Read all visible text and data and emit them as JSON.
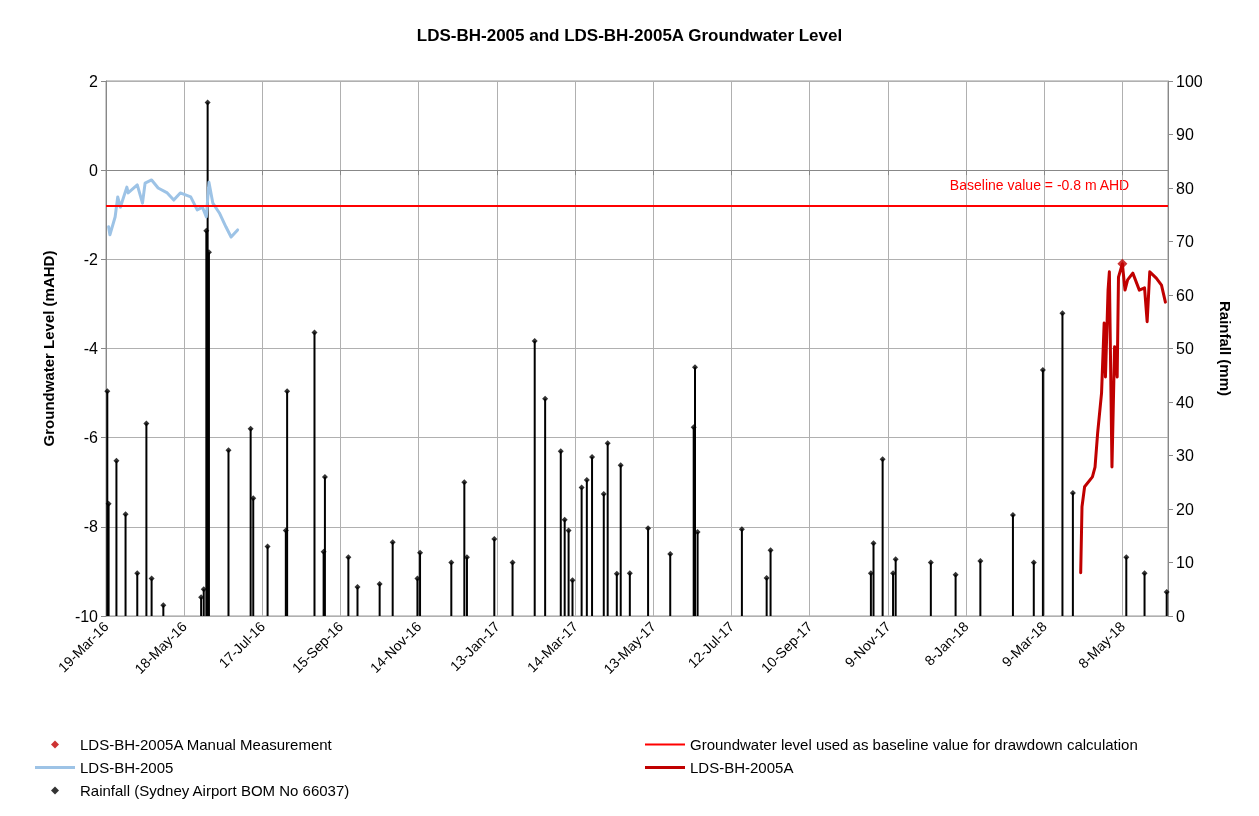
{
  "chart_data": {
    "type": "line",
    "title": "LDS-BH-2005 and LDS-BH-2005A Groundwater Level",
    "ylabel": "Groundwater Level (mAHD)",
    "y2label": "Rainfall (mm)",
    "xlim": [
      "2016-03-19",
      "2018-06-12"
    ],
    "xticks": [
      {
        "value": "2016-03-19",
        "label": "19-Mar-16"
      },
      {
        "value": "2016-05-18",
        "label": "18-May-16"
      },
      {
        "value": "2016-07-17",
        "label": "17-Jul-16"
      },
      {
        "value": "2016-09-15",
        "label": "15-Sep-16"
      },
      {
        "value": "2016-11-14",
        "label": "14-Nov-16"
      },
      {
        "value": "2017-01-13",
        "label": "13-Jan-17"
      },
      {
        "value": "2017-03-14",
        "label": "14-Mar-17"
      },
      {
        "value": "2017-05-13",
        "label": "13-May-17"
      },
      {
        "value": "2017-07-12",
        "label": "12-Jul-17"
      },
      {
        "value": "2017-09-10",
        "label": "10-Sep-17"
      },
      {
        "value": "2017-11-09",
        "label": "9-Nov-17"
      },
      {
        "value": "2018-01-08",
        "label": "8-Jan-18"
      },
      {
        "value": "2018-03-09",
        "label": "9-Mar-18"
      },
      {
        "value": "2018-05-08",
        "label": "8-May-18"
      }
    ],
    "ylim": [
      -10,
      2
    ],
    "yticks": [
      -10,
      -8,
      -6,
      -4,
      -2,
      0,
      2
    ],
    "y2lim": [
      0,
      100
    ],
    "y2ticks": [
      0,
      10,
      20,
      30,
      40,
      50,
      60,
      70,
      80,
      90,
      100
    ],
    "grid": true,
    "legend": "bottom",
    "ref_lines": [
      {
        "axis": "y",
        "value": -0.8,
        "label": "Groundwater level used as baseline value for drawdown calculation",
        "color": "#ff0000"
      }
    ],
    "annotations": [
      "Baseline value = -0.8 m AHD"
    ],
    "series": [
      {
        "name": "LDS-BH-2005A Manual Measurement",
        "type": "scatter",
        "marker": "diamond",
        "color": "#c00000",
        "x": [
          "2018-05-08"
        ],
        "values": [
          -2.1
        ]
      },
      {
        "name": "LDS-BH-2005",
        "marker": "none",
        "color": "#9dc3e6",
        "x": [
          "2016-03-21",
          "2016-03-22",
          "2016-03-26",
          "2016-03-28",
          "2016-03-30",
          "2016-04-04",
          "2016-04-05",
          "2016-04-12",
          "2016-04-16",
          "2016-04-18",
          "2016-04-23",
          "2016-04-28",
          "2016-05-05",
          "2016-05-10",
          "2016-05-15",
          "2016-05-23",
          "2016-05-28",
          "2016-06-01",
          "2016-06-04",
          "2016-06-06",
          "2016-06-09",
          "2016-06-14",
          "2016-06-19",
          "2016-06-23",
          "2016-06-28"
        ],
        "values": [
          -1.27,
          -1.45,
          -1.05,
          -0.6,
          -0.83,
          -0.38,
          -0.51,
          -0.33,
          -0.74,
          -0.29,
          -0.22,
          -0.4,
          -0.51,
          -0.67,
          -0.51,
          -0.6,
          -0.89,
          -0.83,
          -1.05,
          -0.27,
          -0.74,
          -0.96,
          -1.27,
          -1.5,
          -1.34
        ]
      },
      {
        "name": "LDS-BH-2005A",
        "marker": "none",
        "color": "#c00000",
        "x": [
          "2018-04-06",
          "2018-04-07",
          "2018-04-09",
          "2018-04-15",
          "2018-04-17",
          "2018-04-19",
          "2018-04-22",
          "2018-04-24",
          "2018-04-25",
          "2018-04-27",
          "2018-04-28",
          "2018-04-30",
          "2018-05-02",
          "2018-05-04",
          "2018-05-05",
          "2018-05-08",
          "2018-05-10",
          "2018-05-12",
          "2018-05-16",
          "2018-05-21",
          "2018-05-25",
          "2018-05-27",
          "2018-05-29",
          "2018-06-03",
          "2018-06-07",
          "2018-06-10"
        ],
        "values": [
          -9.03,
          -7.55,
          -7.1,
          -6.88,
          -6.66,
          -5.9,
          -5.0,
          -3.43,
          -4.64,
          -2.69,
          -2.28,
          -6.66,
          -3.96,
          -4.64,
          -2.4,
          -2.1,
          -2.69,
          -2.46,
          -2.31,
          -2.69,
          -2.64,
          -3.4,
          -2.28,
          -2.42,
          -2.58,
          -2.96
        ]
      },
      {
        "name": "Rainfall (Sydney Airport BOM No 66037)",
        "type": "lollipop",
        "axis": "y2",
        "marker": "diamond",
        "color": "#000000",
        "x": [
          "2016-03-20",
          "2016-03-21",
          "2016-03-27",
          "2016-04-03",
          "2016-04-12",
          "2016-04-19",
          "2016-04-23",
          "2016-05-02",
          "2016-05-31",
          "2016-06-02",
          "2016-06-04",
          "2016-06-05",
          "2016-06-06",
          "2016-06-21",
          "2016-07-08",
          "2016-07-10",
          "2016-07-21",
          "2016-08-04",
          "2016-08-05",
          "2016-08-26",
          "2016-09-02",
          "2016-09-03",
          "2016-09-21",
          "2016-09-28",
          "2016-10-15",
          "2016-10-25",
          "2016-11-13",
          "2016-11-15",
          "2016-12-09",
          "2016-12-19",
          "2016-12-21",
          "2017-01-11",
          "2017-01-25",
          "2017-02-11",
          "2017-02-19",
          "2017-03-03",
          "2017-03-06",
          "2017-03-09",
          "2017-03-12",
          "2017-03-19",
          "2017-03-23",
          "2017-03-27",
          "2017-04-05",
          "2017-04-08",
          "2017-04-15",
          "2017-04-18",
          "2017-04-25",
          "2017-05-09",
          "2017-05-26",
          "2017-06-13",
          "2017-06-14",
          "2017-06-16",
          "2017-07-20",
          "2017-08-08",
          "2017-08-11",
          "2017-10-27",
          "2017-10-29",
          "2017-11-05",
          "2017-11-13",
          "2017-11-15",
          "2017-12-12",
          "2017-12-31",
          "2018-01-19",
          "2018-02-13",
          "2018-03-01",
          "2018-03-08",
          "2018-03-23",
          "2018-03-31",
          "2018-05-11",
          "2018-05-25",
          "2018-06-11"
        ],
        "values": [
          42,
          21,
          29,
          19,
          8,
          36,
          7,
          2,
          3.5,
          5,
          72,
          96,
          68,
          31,
          35,
          22,
          13,
          16,
          42,
          53,
          12,
          26,
          11,
          5.4,
          6,
          13.8,
          7,
          11.8,
          10,
          25,
          11,
          14.4,
          10,
          51.4,
          40.6,
          30.8,
          18,
          16,
          6.7,
          24,
          25.4,
          29.7,
          22.8,
          32.3,
          7.9,
          28.2,
          8,
          16.4,
          11.6,
          35.3,
          46.5,
          15.7,
          16.2,
          7.1,
          12.3,
          8,
          13.6,
          29.3,
          8,
          10.6,
          10,
          7.7,
          10.3,
          18.9,
          10,
          46,
          56.6,
          23,
          11,
          8,
          4.5
        ]
      }
    ]
  }
}
